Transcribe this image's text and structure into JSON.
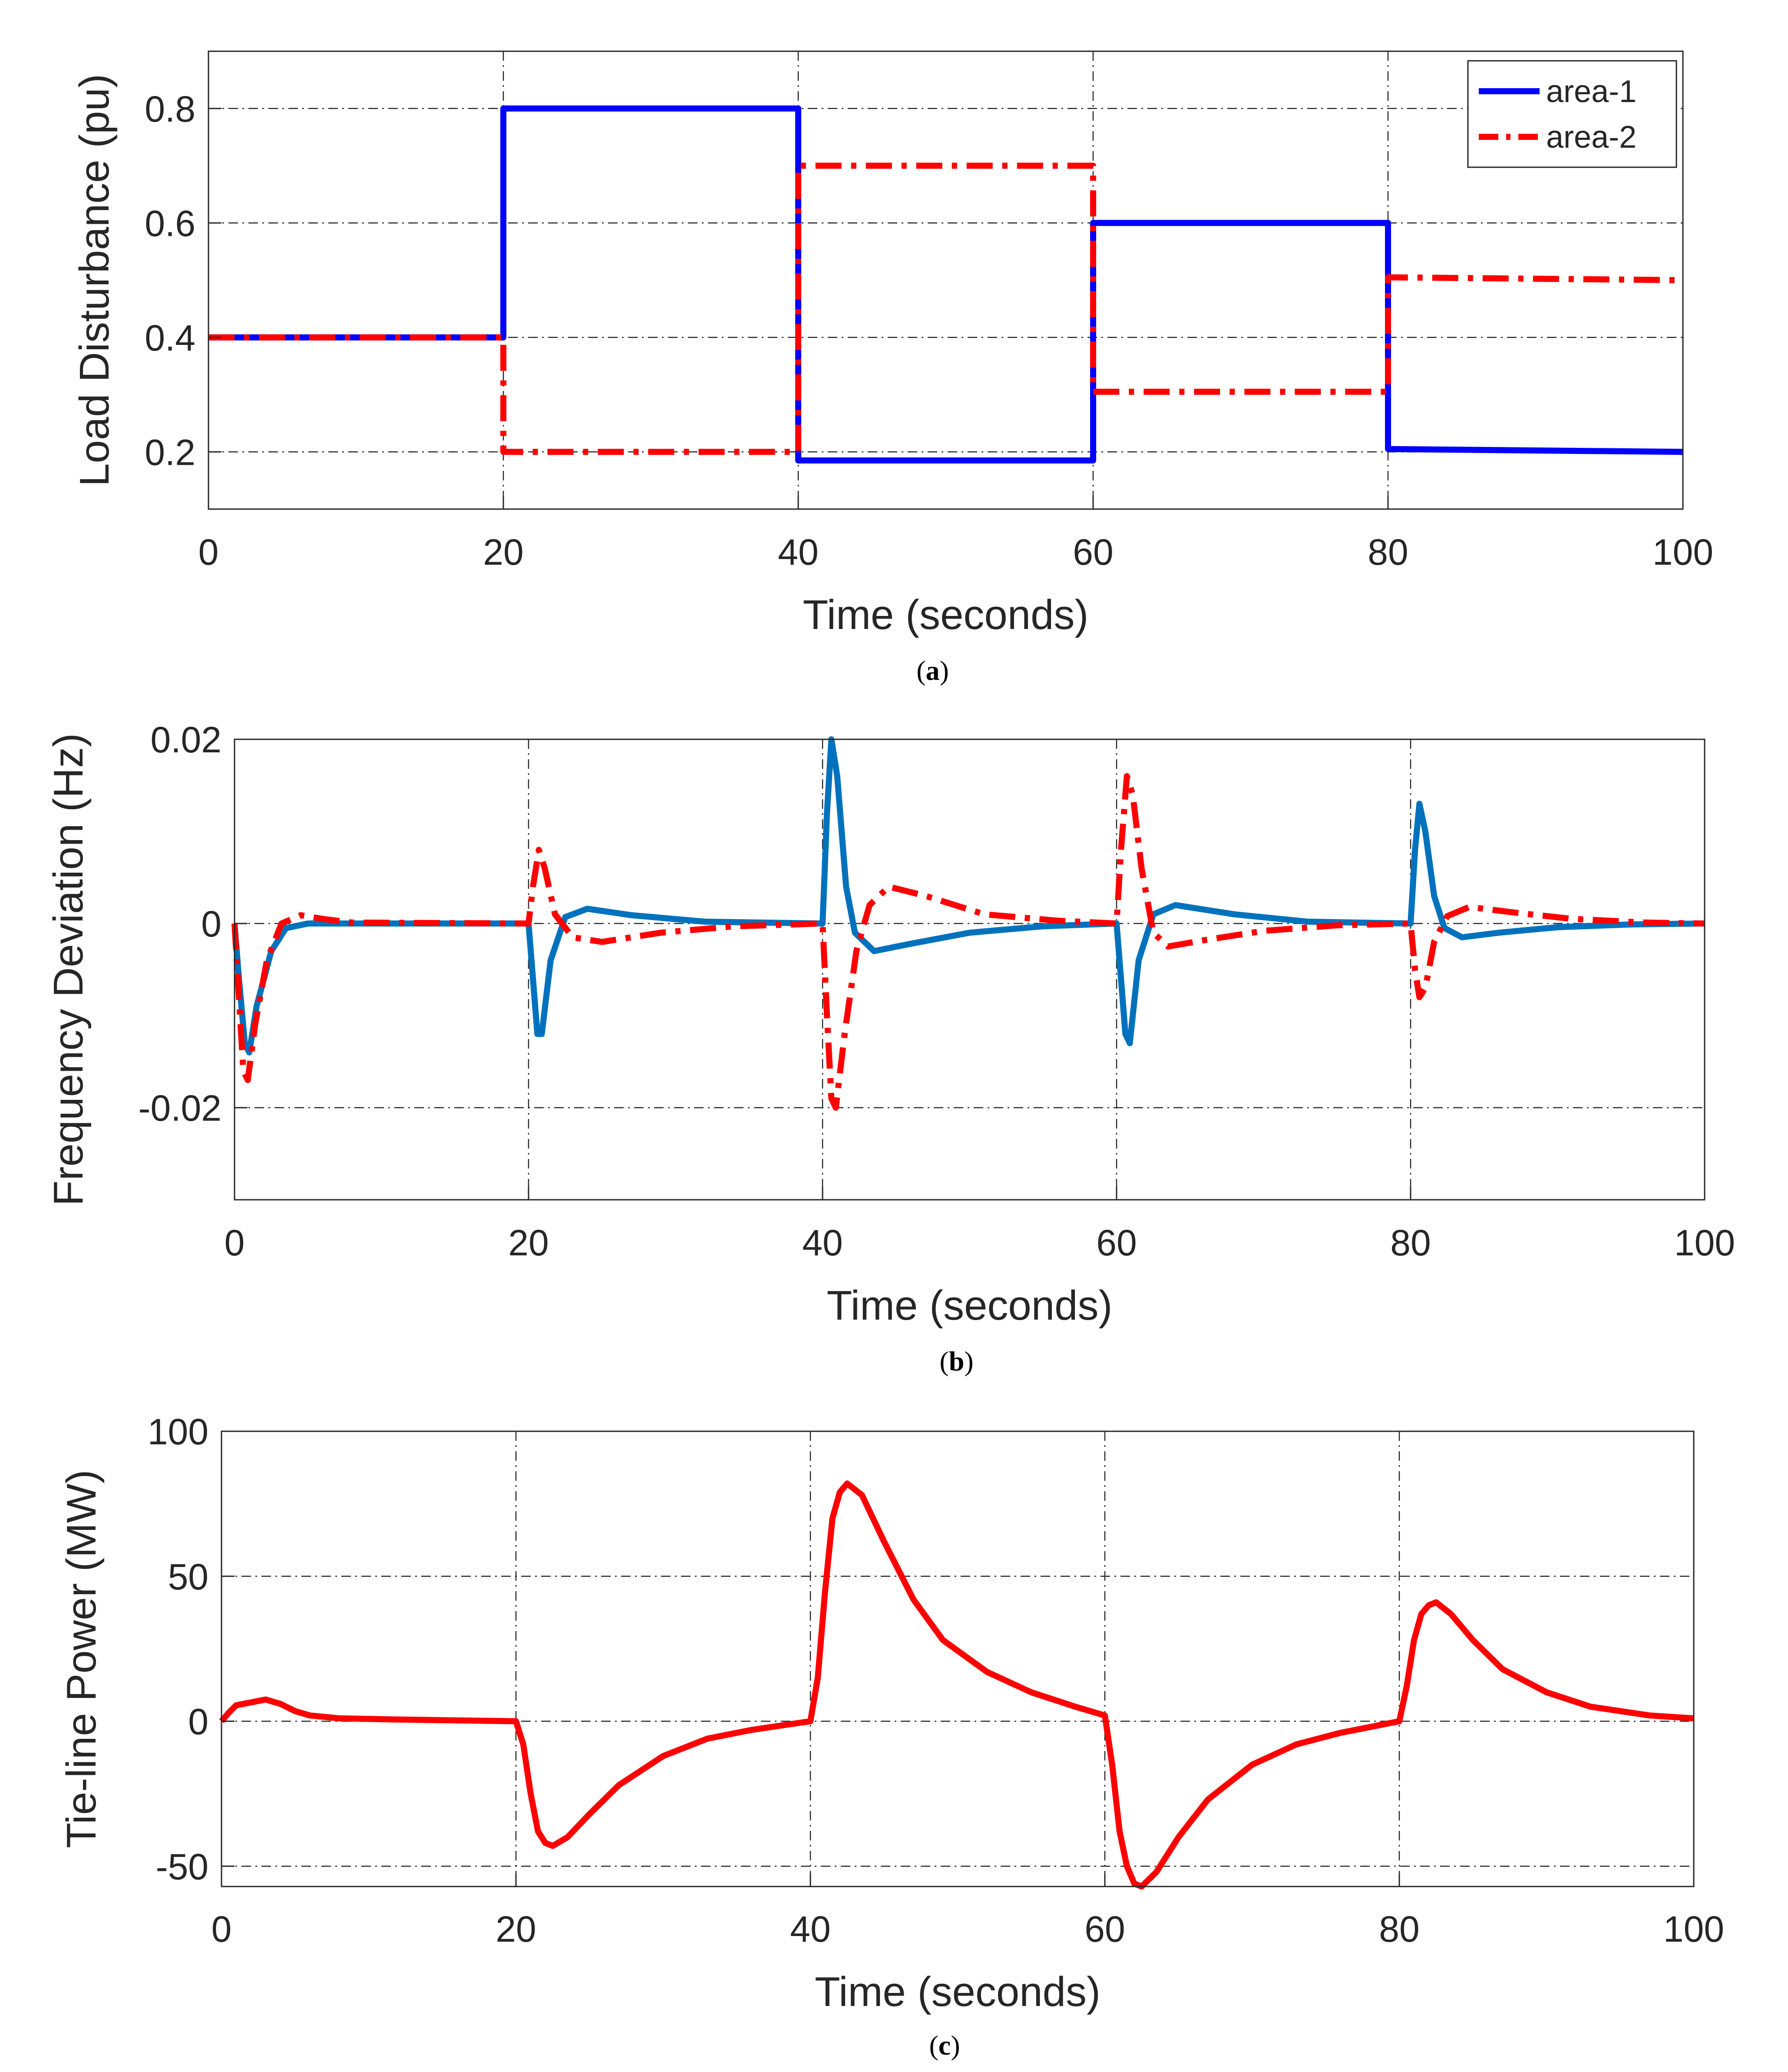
{
  "colors": {
    "area1_a": "#0000ff",
    "area1_b": "#0072bd",
    "area2": "#ff0000",
    "tie": "#ff0000",
    "axis": "#262626"
  },
  "chart_data": [
    {
      "id": "a",
      "type": "line",
      "caption": {
        "open": "(",
        "letter": "a",
        "close": ")"
      },
      "xlabel": "Time (seconds)",
      "ylabel": "Load Disturbance (pu)",
      "xlim": [
        0,
        100
      ],
      "ylim": [
        0.1,
        0.9
      ],
      "xticks": [
        0,
        20,
        40,
        60,
        80,
        100
      ],
      "xtick_labels": [
        "0",
        "20",
        "40",
        "60",
        "80",
        "100"
      ],
      "yticks": [
        0.2,
        0.4,
        0.6,
        0.8
      ],
      "ytick_labels": [
        "0.2",
        "0.4",
        "0.6",
        "0.8"
      ],
      "grid": true,
      "legend": {
        "position": "top-right",
        "entries": [
          "area-1",
          "area-2"
        ]
      },
      "series": [
        {
          "name": "area-1",
          "style": "solid",
          "color": "#0000ff",
          "points": [
            [
              0,
              0.4
            ],
            [
              20,
              0.4
            ],
            [
              20,
              0.8
            ],
            [
              40,
              0.8
            ],
            [
              40,
              0.185
            ],
            [
              60,
              0.185
            ],
            [
              60,
              0.6
            ],
            [
              80,
              0.6
            ],
            [
              80,
              0.205
            ],
            [
              100,
              0.2
            ]
          ]
        },
        {
          "name": "area-2",
          "style": "dashdot",
          "color": "#ff0000",
          "points": [
            [
              0,
              0.4
            ],
            [
              20,
              0.4
            ],
            [
              20,
              0.2
            ],
            [
              40,
              0.2
            ],
            [
              40,
              0.7
            ],
            [
              60,
              0.7
            ],
            [
              60,
              0.305
            ],
            [
              80,
              0.305
            ],
            [
              80,
              0.505
            ],
            [
              100,
              0.5
            ]
          ]
        }
      ]
    },
    {
      "id": "b",
      "type": "line",
      "caption": {
        "open": "(",
        "letter": "b",
        "close": ")"
      },
      "xlabel": "Time (seconds)",
      "ylabel": "Frequency Deviation (Hz)",
      "xlim": [
        0,
        100
      ],
      "ylim": [
        -0.03,
        0.02
      ],
      "xticks": [
        0,
        20,
        40,
        60,
        80,
        100
      ],
      "xtick_labels": [
        "0",
        "20",
        "40",
        "60",
        "80",
        "100"
      ],
      "yticks": [
        -0.02,
        0,
        0.02
      ],
      "ytick_labels": [
        "-0.02",
        "0",
        "0.02"
      ],
      "grid": true,
      "series": [
        {
          "name": "area-1",
          "style": "solid",
          "color": "#0072bd",
          "points": [
            [
              0,
              0
            ],
            [
              0.3,
              -0.006
            ],
            [
              0.7,
              -0.013
            ],
            [
              1.0,
              -0.014
            ],
            [
              1.5,
              -0.009
            ],
            [
              2.5,
              -0.003
            ],
            [
              3.5,
              -0.0005
            ],
            [
              5,
              0
            ],
            [
              20,
              0
            ],
            [
              20.2,
              -0.004
            ],
            [
              20.6,
              -0.012
            ],
            [
              20.9,
              -0.012
            ],
            [
              21.5,
              -0.004
            ],
            [
              22.5,
              0.0007
            ],
            [
              24,
              0.0016
            ],
            [
              27,
              0.0009
            ],
            [
              32,
              0.0002
            ],
            [
              40,
              0
            ],
            [
              40.3,
              0.012
            ],
            [
              40.6,
              0.02
            ],
            [
              41.0,
              0.016
            ],
            [
              41.6,
              0.004
            ],
            [
              42.2,
              -0.001
            ],
            [
              43.5,
              -0.003
            ],
            [
              46,
              -0.0022
            ],
            [
              50,
              -0.001
            ],
            [
              55,
              -0.0003
            ],
            [
              60,
              0
            ],
            [
              60.2,
              -0.004
            ],
            [
              60.6,
              -0.012
            ],
            [
              60.9,
              -0.013
            ],
            [
              61.5,
              -0.004
            ],
            [
              62.5,
              0.001
            ],
            [
              64,
              0.002
            ],
            [
              68,
              0.001
            ],
            [
              73,
              0.0002
            ],
            [
              80,
              0
            ],
            [
              80.3,
              0.008
            ],
            [
              80.6,
              0.013
            ],
            [
              81.0,
              0.01
            ],
            [
              81.6,
              0.003
            ],
            [
              82.3,
              -0.0005
            ],
            [
              83.5,
              -0.0015
            ],
            [
              86,
              -0.001
            ],
            [
              90,
              -0.0004
            ],
            [
              95,
              -0.0001
            ],
            [
              100,
              0
            ]
          ]
        },
        {
          "name": "area-2",
          "style": "dashdot",
          "color": "#ff0000",
          "points": [
            [
              0,
              0
            ],
            [
              0.3,
              -0.008
            ],
            [
              0.6,
              -0.016
            ],
            [
              0.9,
              -0.017
            ],
            [
              1.4,
              -0.011
            ],
            [
              2.2,
              -0.004
            ],
            [
              3.2,
              0
            ],
            [
              4.5,
              0.0009
            ],
            [
              6,
              0.0005
            ],
            [
              8,
              0.0001
            ],
            [
              20,
              0
            ],
            [
              20.3,
              0.004
            ],
            [
              20.7,
              0.008
            ],
            [
              21.1,
              0.006
            ],
            [
              21.8,
              0.001
            ],
            [
              23,
              -0.0015
            ],
            [
              25,
              -0.002
            ],
            [
              29,
              -0.001
            ],
            [
              34,
              -0.0003
            ],
            [
              40,
              0
            ],
            [
              40.3,
              -0.01
            ],
            [
              40.6,
              -0.019
            ],
            [
              40.9,
              -0.02
            ],
            [
              41.5,
              -0.012
            ],
            [
              42.3,
              -0.003
            ],
            [
              43.2,
              0.002
            ],
            [
              44.5,
              0.004
            ],
            [
              47,
              0.003
            ],
            [
              51,
              0.001
            ],
            [
              56,
              0.0003
            ],
            [
              60,
              0
            ],
            [
              60.3,
              0.008
            ],
            [
              60.7,
              0.016
            ],
            [
              61.1,
              0.014
            ],
            [
              61.7,
              0.006
            ],
            [
              62.5,
              -0.001
            ],
            [
              63.5,
              -0.0025
            ],
            [
              66,
              -0.0018
            ],
            [
              70,
              -0.0008
            ],
            [
              75,
              -0.0002
            ],
            [
              80,
              0
            ],
            [
              80.3,
              -0.005
            ],
            [
              80.6,
              -0.008
            ],
            [
              81.0,
              -0.007
            ],
            [
              81.6,
              -0.002
            ],
            [
              82.5,
              0.0008
            ],
            [
              84,
              0.0018
            ],
            [
              87,
              0.0012
            ],
            [
              91,
              0.0005
            ],
            [
              96,
              0.0001
            ],
            [
              100,
              0
            ]
          ]
        }
      ]
    },
    {
      "id": "c",
      "type": "line",
      "caption": {
        "open": "(",
        "letter": "c",
        "close": ")"
      },
      "xlabel": "Time (seconds)",
      "ylabel": "Tie-line Power (MW)",
      "xlim": [
        0,
        100
      ],
      "ylim": [
        -57,
        100
      ],
      "xticks": [
        0,
        20,
        40,
        60,
        80,
        100
      ],
      "xtick_labels": [
        "0",
        "20",
        "40",
        "60",
        "80",
        "100"
      ],
      "yticks": [
        -50,
        0,
        50,
        100
      ],
      "ytick_labels": [
        "-50",
        "0",
        "50",
        "100"
      ],
      "grid": true,
      "series": [
        {
          "name": "tie-line",
          "style": "solid",
          "color": "#ff0000",
          "points": [
            [
              0,
              0
            ],
            [
              0.5,
              3
            ],
            [
              1,
              5.5
            ],
            [
              2,
              6.5
            ],
            [
              3,
              7.5
            ],
            [
              4,
              6
            ],
            [
              5,
              3.5
            ],
            [
              6,
              2
            ],
            [
              8,
              1
            ],
            [
              12,
              0.6
            ],
            [
              20,
              0
            ],
            [
              20.5,
              -8
            ],
            [
              21,
              -25
            ],
            [
              21.5,
              -38
            ],
            [
              22,
              -42
            ],
            [
              22.5,
              -43
            ],
            [
              23.5,
              -40
            ],
            [
              25,
              -32
            ],
            [
              27,
              -22
            ],
            [
              30,
              -12
            ],
            [
              33,
              -6
            ],
            [
              36,
              -3
            ],
            [
              40,
              0
            ],
            [
              40.5,
              15
            ],
            [
              41,
              45
            ],
            [
              41.5,
              70
            ],
            [
              42,
              79
            ],
            [
              42.5,
              82
            ],
            [
              43.5,
              78
            ],
            [
              45,
              62
            ],
            [
              47,
              42
            ],
            [
              49,
              28
            ],
            [
              52,
              17
            ],
            [
              55,
              10
            ],
            [
              58,
              5
            ],
            [
              60,
              2
            ],
            [
              60.5,
              -15
            ],
            [
              61,
              -38
            ],
            [
              61.5,
              -50
            ],
            [
              62,
              -56
            ],
            [
              62.5,
              -57
            ],
            [
              63.5,
              -52
            ],
            [
              65,
              -40
            ],
            [
              67,
              -27
            ],
            [
              70,
              -15
            ],
            [
              73,
              -8
            ],
            [
              76,
              -4
            ],
            [
              80,
              0
            ],
            [
              80.5,
              12
            ],
            [
              81,
              28
            ],
            [
              81.5,
              37
            ],
            [
              82,
              40
            ],
            [
              82.5,
              41
            ],
            [
              83.5,
              37
            ],
            [
              85,
              28
            ],
            [
              87,
              18
            ],
            [
              90,
              10
            ],
            [
              93,
              5
            ],
            [
              97,
              2
            ],
            [
              100,
              1
            ]
          ]
        }
      ]
    }
  ]
}
